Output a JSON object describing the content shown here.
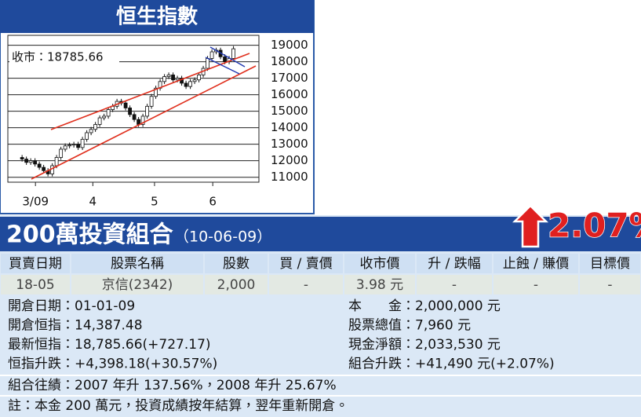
{
  "header": {
    "title": "恒生指數"
  },
  "chart_data": {
    "type": "candlestick",
    "annotation": "收市：18785.66",
    "x": [
      0,
      1,
      2,
      3,
      4,
      5,
      6,
      7,
      8,
      9,
      10,
      11,
      12,
      13,
      14,
      15,
      16,
      17,
      18,
      19,
      20,
      21,
      22,
      23,
      24,
      25,
      26,
      27,
      28,
      29,
      30,
      31,
      32,
      33,
      34,
      35,
      36,
      37,
      38,
      39,
      40,
      41,
      42,
      43,
      44,
      45,
      46,
      47,
      48,
      49
    ],
    "open": [
      12200,
      12100,
      11900,
      12000,
      11800,
      11600,
      11400,
      11200,
      11700,
      12200,
      12700,
      12900,
      12950,
      13000,
      12800,
      13300,
      13700,
      13900,
      14200,
      14600,
      14700,
      15100,
      15300,
      15600,
      15500,
      15200,
      14800,
      14500,
      14200,
      14700,
      15300,
      15900,
      16400,
      16800,
      17100,
      17200,
      16900,
      17000,
      16700,
      16500,
      16800,
      16900,
      17200,
      17600,
      18200,
      18600,
      18700,
      18300,
      18000,
      18200
    ],
    "high": [
      12350,
      12250,
      12150,
      12150,
      11950,
      11750,
      11550,
      11850,
      12350,
      12850,
      13050,
      13100,
      13150,
      13150,
      13450,
      13850,
      14050,
      14350,
      14750,
      14850,
      15250,
      15450,
      15750,
      15750,
      15650,
      15350,
      14950,
      14650,
      14850,
      15450,
      16050,
      16550,
      16950,
      17250,
      17350,
      17350,
      17150,
      17150,
      16850,
      16950,
      17050,
      17350,
      17750,
      18350,
      18750,
      18850,
      18850,
      18450,
      18350,
      18950
    ],
    "low": [
      11950,
      11750,
      11750,
      11650,
      11450,
      11250,
      11050,
      11050,
      11550,
      12050,
      12550,
      12750,
      12800,
      12650,
      12650,
      13150,
      13550,
      13750,
      14050,
      14450,
      14550,
      14950,
      15150,
      15350,
      15050,
      14650,
      14350,
      14050,
      14050,
      14550,
      15150,
      15750,
      16250,
      16650,
      16950,
      16750,
      16750,
      16550,
      16350,
      16350,
      16650,
      16750,
      17050,
      17450,
      18050,
      18450,
      18150,
      17850,
      17850,
      18050
    ],
    "close": [
      12100,
      11900,
      12000,
      11800,
      11600,
      11400,
      11200,
      11700,
      12200,
      12700,
      12900,
      12950,
      13000,
      12800,
      13300,
      13700,
      13900,
      14200,
      14600,
      14700,
      15100,
      15300,
      15600,
      15500,
      15200,
      14800,
      14500,
      14200,
      14700,
      15300,
      15900,
      16400,
      16800,
      17100,
      17200,
      16900,
      17000,
      16700,
      16500,
      16800,
      16900,
      17200,
      17600,
      18200,
      18600,
      18700,
      18300,
      18000,
      18200,
      18785.66
    ],
    "up_color": "#ffffff",
    "down_color": "#111111",
    "xlim": [
      -3.3,
      54.9
    ],
    "xticks": [
      {
        "value": 3.1,
        "label": "3/09"
      },
      {
        "value": 16.4,
        "label": "4"
      },
      {
        "value": 30.7,
        "label": "5"
      },
      {
        "value": 44.2,
        "label": "6"
      }
    ],
    "ylim": [
      10700,
      19600
    ],
    "yticks": [
      11000,
      12000,
      13000,
      14000,
      15000,
      16000,
      17000,
      18000,
      19000
    ],
    "grid": true
  },
  "portfolio": {
    "title": "200萬投資組合",
    "date": "（10-06-09）",
    "change": "2.07%",
    "columns": [
      "買賣日期",
      "股票名稱",
      "股數",
      "買 / 賣價",
      "收市價",
      "升 / 跌幅",
      "止蝕 / 賺價",
      "目標價"
    ],
    "rows": [
      [
        "18-05",
        "京信(2342)",
        "2,000",
        "-",
        "3.98 元",
        "-",
        "-",
        "-"
      ]
    ],
    "details_left": [
      "開倉日期：01-01-09",
      "開倉恒指：14,387.48",
      "最新恒指：18,785.66(+727.17)",
      "恒指升跌：+4,398.18(+30.57%)"
    ],
    "details_right": [
      "本　　金：2,000,000 元",
      "股票總值：7,960 元",
      "現金淨額：2,033,530 元",
      "組合升跌：+41,490 元(+2.07%)"
    ],
    "notes": [
      "組合往績：2007 年升 137.56%，2008 年升 25.67%",
      "註：本金 200 萬元，投資成績按年結算，翌年重新開倉。"
    ]
  }
}
